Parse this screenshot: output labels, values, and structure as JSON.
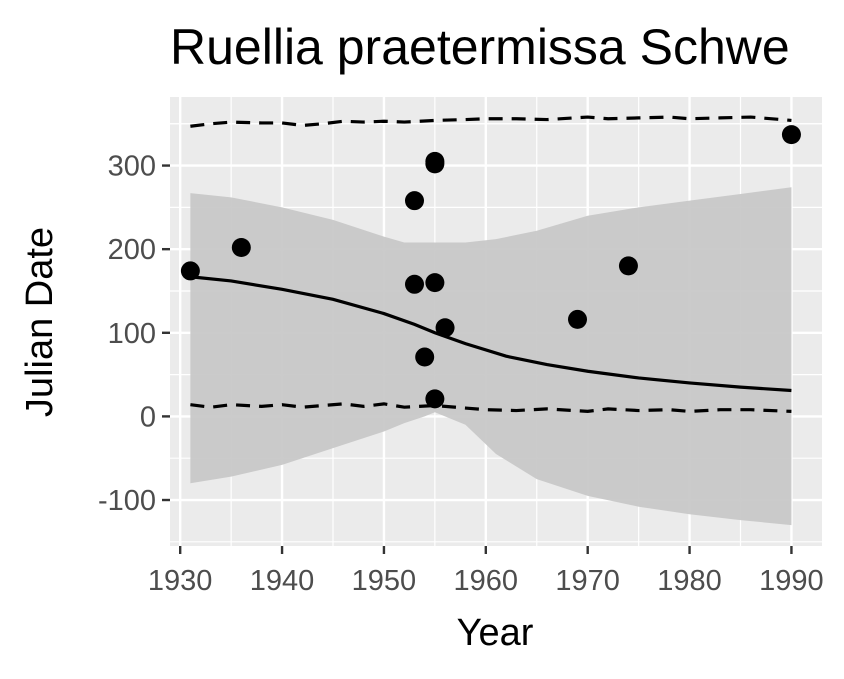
{
  "chart_data": {
    "type": "scatter",
    "title": "Ruellia praetermissa Schwe",
    "xlabel": "Year",
    "ylabel": "Julian Date",
    "xlim": [
      1929,
      1993
    ],
    "ylim": [
      -155,
      382
    ],
    "x_ticks": [
      1930,
      1940,
      1950,
      1960,
      1970,
      1980,
      1990
    ],
    "y_ticks": [
      -100,
      0,
      100,
      200,
      300
    ],
    "x_tick_labels": [
      "1930",
      "1940",
      "1950",
      "1960",
      "1970",
      "1980",
      "1990"
    ],
    "y_tick_labels": [
      "-100",
      "0",
      "100",
      "200",
      "300"
    ],
    "grid": true,
    "legend": "none",
    "points": [
      {
        "x": 1931,
        "y": 174
      },
      {
        "x": 1936,
        "y": 202
      },
      {
        "x": 1953,
        "y": 258
      },
      {
        "x": 1953,
        "y": 158
      },
      {
        "x": 1954,
        "y": 71
      },
      {
        "x": 1955,
        "y": 305
      },
      {
        "x": 1955,
        "y": 302
      },
      {
        "x": 1955,
        "y": 160
      },
      {
        "x": 1955,
        "y": 21
      },
      {
        "x": 1956,
        "y": 106
      },
      {
        "x": 1969,
        "y": 116
      },
      {
        "x": 1974,
        "y": 180
      },
      {
        "x": 1990,
        "y": 337
      }
    ],
    "fit_line": {
      "x": [
        1931,
        1935,
        1940,
        1945,
        1950,
        1953,
        1955,
        1958,
        1962,
        1966,
        1970,
        1975,
        1980,
        1985,
        1990
      ],
      "y": [
        167,
        162,
        152,
        140,
        123,
        110,
        100,
        87,
        72,
        62,
        54,
        46,
        40,
        35,
        31
      ]
    },
    "band": {
      "x": [
        1931,
        1935,
        1940,
        1945,
        1950,
        1952,
        1954,
        1955,
        1958,
        1961,
        1965,
        1970,
        1975,
        1980,
        1985,
        1990
      ],
      "upper": [
        267,
        262,
        250,
        235,
        215,
        208,
        208,
        208,
        208,
        212,
        222,
        240,
        250,
        258,
        266,
        274
      ],
      "lower": [
        -80,
        -72,
        -58,
        -38,
        -18,
        -8,
        0,
        5,
        -10,
        -45,
        -75,
        -95,
        -108,
        -117,
        -124,
        -130
      ]
    },
    "upper_dashed": {
      "x": [
        1931,
        1933,
        1935,
        1938,
        1940,
        1942,
        1944,
        1946,
        1948,
        1950,
        1952,
        1955,
        1958,
        1960,
        1963,
        1966,
        1970,
        1972,
        1975,
        1978,
        1980,
        1983,
        1986,
        1990
      ],
      "y": [
        347,
        350,
        352,
        351,
        351,
        348,
        350,
        353,
        352,
        353,
        352,
        354,
        355,
        356,
        356,
        355,
        358,
        356,
        357,
        358,
        356,
        357,
        358,
        354
      ]
    },
    "lower_dashed": {
      "x": [
        1931,
        1933,
        1935,
        1938,
        1940,
        1942,
        1944,
        1946,
        1948,
        1950,
        1952,
        1955,
        1958,
        1960,
        1963,
        1966,
        1970,
        1972,
        1975,
        1978,
        1980,
        1983,
        1986,
        1990
      ],
      "y": [
        14,
        11,
        14,
        12,
        14,
        11,
        13,
        15,
        12,
        15,
        11,
        13,
        10,
        8,
        7,
        9,
        6,
        9,
        7,
        8,
        6,
        8,
        8,
        6
      ]
    },
    "colors": {
      "panel": "#ebebeb",
      "band": "#c8c8c8",
      "points": "#000000",
      "line": "#000000",
      "tick_text": "#4d4d4d"
    }
  }
}
